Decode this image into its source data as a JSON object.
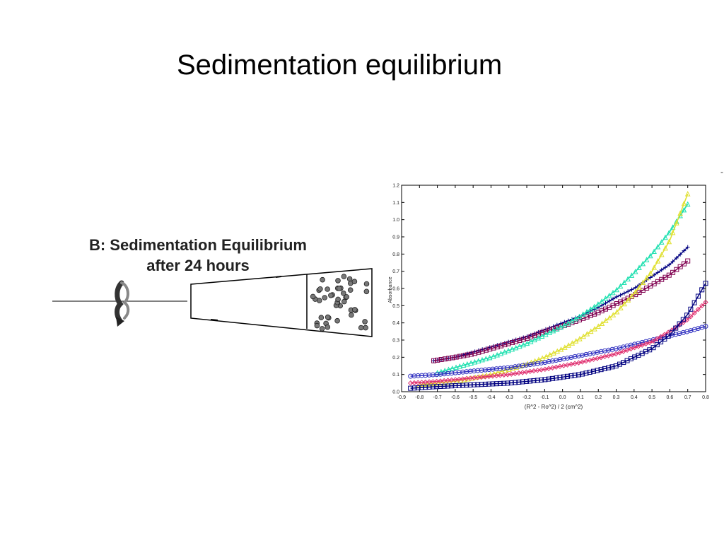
{
  "slide": {
    "title": "Sedimentation equilibrium",
    "diagram_heading_line1": "B: Sedimentation Equilibrium",
    "diagram_heading_line2": "after 24 hours",
    "stray_mark": "-",
    "icons": [
      "rotation-arrow-icon"
    ],
    "colors": {
      "text": "#000000",
      "heading": "#222222",
      "particle": "#777777"
    }
  },
  "chart_data": {
    "type": "scatter",
    "title": "",
    "xlabel": "(R^2 - Ro^2) / 2  (cm^2)",
    "ylabel": "Absorbance",
    "xlim": [
      -0.9,
      0.8
    ],
    "ylim": [
      0.0,
      1.2
    ],
    "xticks": [
      "-0.9",
      "-0.8",
      "-0.7",
      "-0.6",
      "-0.5",
      "-0.4",
      "-0.3",
      "-0.2",
      "-0.1",
      "0.0",
      "0.1",
      "0.2",
      "0.3",
      "0.4",
      "0.5",
      "0.6",
      "0.7",
      "0.8"
    ],
    "yticks": [
      "0.0",
      "0.1",
      "0.2",
      "0.3",
      "0.4",
      "0.5",
      "0.6",
      "0.7",
      "0.8",
      "0.9",
      "1.0",
      "1.1",
      "1.2"
    ],
    "grid": false,
    "series": [
      {
        "color": "#000080",
        "marker": "plus",
        "x": [
          -0.72,
          -0.6,
          -0.5,
          -0.4,
          -0.3,
          -0.2,
          -0.1,
          0.0,
          0.1,
          0.2,
          0.3,
          0.4,
          0.5,
          0.6,
          0.7
        ],
        "y": [
          0.18,
          0.2,
          0.23,
          0.26,
          0.29,
          0.32,
          0.36,
          0.4,
          0.44,
          0.49,
          0.55,
          0.6,
          0.67,
          0.74,
          0.84
        ]
      },
      {
        "color": "#800050",
        "marker": "square",
        "x": [
          -0.72,
          -0.6,
          -0.5,
          -0.4,
          -0.3,
          -0.2,
          -0.1,
          0.0,
          0.1,
          0.2,
          0.3,
          0.4,
          0.5,
          0.6,
          0.7
        ],
        "y": [
          0.18,
          0.2,
          0.22,
          0.25,
          0.28,
          0.31,
          0.35,
          0.38,
          0.42,
          0.46,
          0.51,
          0.56,
          0.62,
          0.68,
          0.76
        ]
      },
      {
        "color": "#20e0b0",
        "marker": "triangle",
        "x": [
          -0.7,
          -0.6,
          -0.5,
          -0.4,
          -0.3,
          -0.2,
          -0.1,
          0.0,
          0.1,
          0.2,
          0.3,
          0.4,
          0.5,
          0.6,
          0.7
        ],
        "y": [
          0.11,
          0.14,
          0.17,
          0.2,
          0.24,
          0.28,
          0.33,
          0.38,
          0.44,
          0.51,
          0.59,
          0.69,
          0.8,
          0.93,
          1.09
        ]
      },
      {
        "color": "#e0e030",
        "marker": "triangle",
        "x": [
          -0.8,
          -0.7,
          -0.6,
          -0.5,
          -0.4,
          -0.3,
          -0.2,
          -0.1,
          0.0,
          0.1,
          0.2,
          0.3,
          0.4,
          0.5,
          0.6,
          0.7
        ],
        "y": [
          0.04,
          0.05,
          0.06,
          0.08,
          0.1,
          0.13,
          0.16,
          0.2,
          0.25,
          0.31,
          0.38,
          0.46,
          0.57,
          0.7,
          0.88,
          1.15
        ]
      },
      {
        "color": "#3030c0",
        "marker": "circle",
        "x": [
          -0.85,
          -0.7,
          -0.5,
          -0.3,
          -0.1,
          0.1,
          0.3,
          0.5,
          0.7,
          0.8
        ],
        "y": [
          0.09,
          0.1,
          0.12,
          0.14,
          0.17,
          0.21,
          0.25,
          0.3,
          0.35,
          0.38
        ]
      },
      {
        "color": "#e03070",
        "marker": "diamond",
        "x": [
          -0.85,
          -0.7,
          -0.5,
          -0.3,
          -0.1,
          0.1,
          0.3,
          0.5,
          0.6,
          0.7,
          0.8
        ],
        "y": [
          0.05,
          0.06,
          0.08,
          0.1,
          0.13,
          0.17,
          0.22,
          0.29,
          0.35,
          0.42,
          0.52
        ]
      },
      {
        "color": "#000080",
        "marker": "square",
        "x": [
          -0.85,
          -0.7,
          -0.5,
          -0.3,
          -0.1,
          0.1,
          0.3,
          0.5,
          0.6,
          0.7,
          0.8
        ],
        "y": [
          0.02,
          0.03,
          0.04,
          0.05,
          0.07,
          0.1,
          0.15,
          0.25,
          0.33,
          0.45,
          0.63
        ]
      }
    ]
  }
}
